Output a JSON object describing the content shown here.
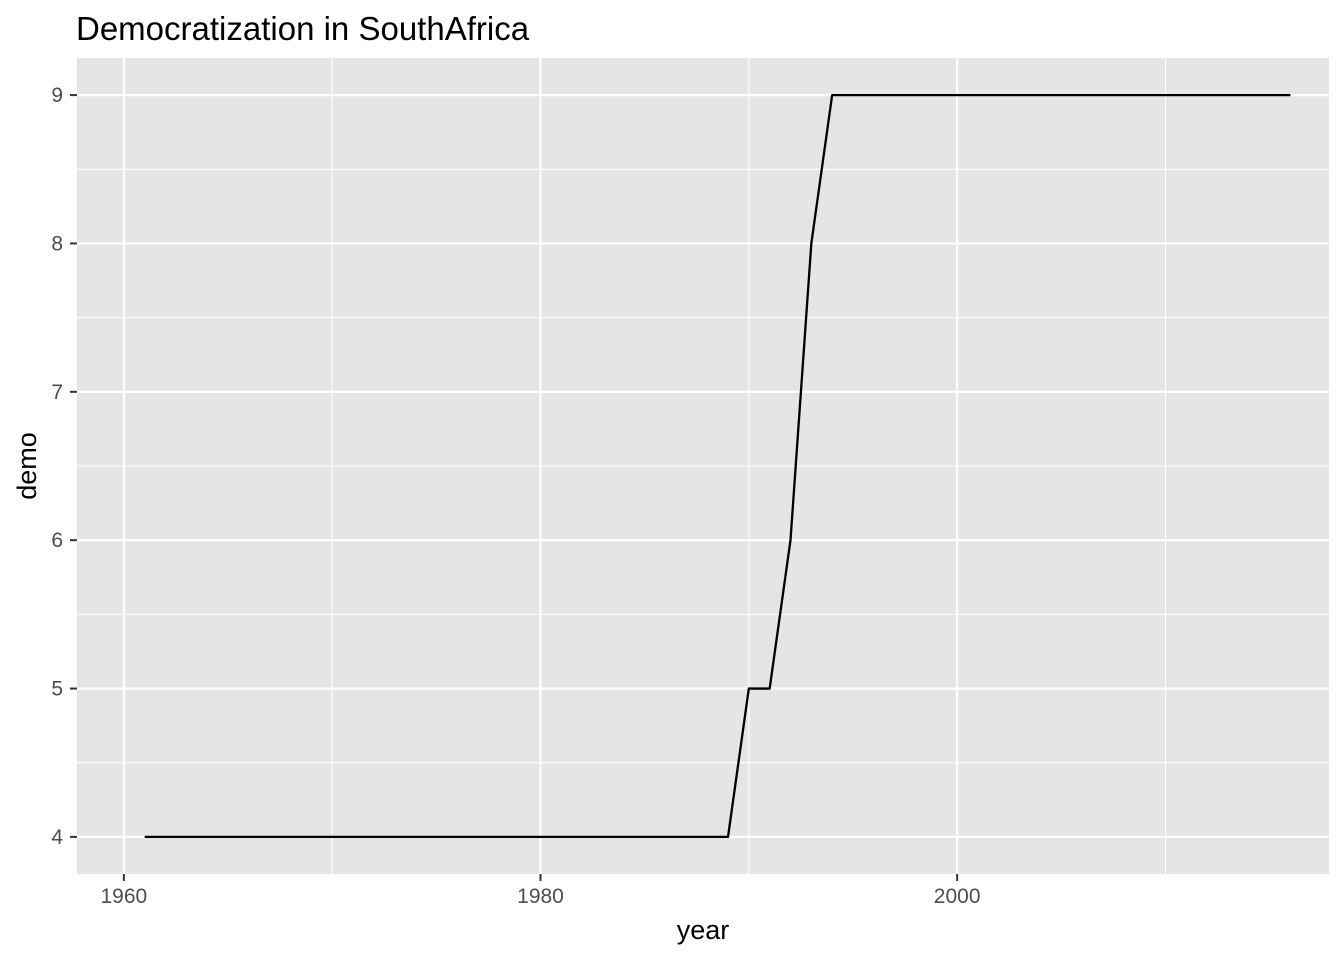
{
  "chart_data": {
    "type": "line",
    "title": "Democratization in SouthAfrica",
    "xlabel": "year",
    "ylabel": "demo",
    "x_ticks": [
      1960,
      1980,
      2000
    ],
    "y_ticks": [
      4,
      5,
      6,
      7,
      8,
      9
    ],
    "xlim": [
      1957.75,
      2017.85
    ],
    "ylim": [
      3.75,
      9.25
    ],
    "grid": true,
    "legend": "none",
    "colors": {
      "panel": "#e5e5e5",
      "grid": "#ffffff",
      "line": "#000000",
      "tick_text": "#4d4d4d"
    },
    "series": [
      {
        "x": [
          1961,
          1962,
          1963,
          1964,
          1965,
          1966,
          1967,
          1968,
          1969,
          1970,
          1971,
          1972,
          1973,
          1974,
          1975,
          1976,
          1977,
          1978,
          1979,
          1980,
          1981,
          1982,
          1983,
          1984,
          1985,
          1986,
          1987,
          1988,
          1989,
          1990,
          1991,
          1992,
          1993,
          1994,
          1995,
          1996,
          1997,
          1998,
          1999,
          2000,
          2001,
          2002,
          2003,
          2004,
          2005,
          2006,
          2007,
          2008,
          2009,
          2010,
          2011,
          2012,
          2013,
          2014,
          2015,
          2016
        ],
        "y": [
          4,
          4,
          4,
          4,
          4,
          4,
          4,
          4,
          4,
          4,
          4,
          4,
          4,
          4,
          4,
          4,
          4,
          4,
          4,
          4,
          4,
          4,
          4,
          4,
          4,
          4,
          4,
          4,
          4,
          5,
          5,
          6,
          8,
          9,
          9,
          9,
          9,
          9,
          9,
          9,
          9,
          9,
          9,
          9,
          9,
          9,
          9,
          9,
          9,
          9,
          9,
          9,
          9,
          9,
          9,
          9
        ]
      }
    ]
  }
}
